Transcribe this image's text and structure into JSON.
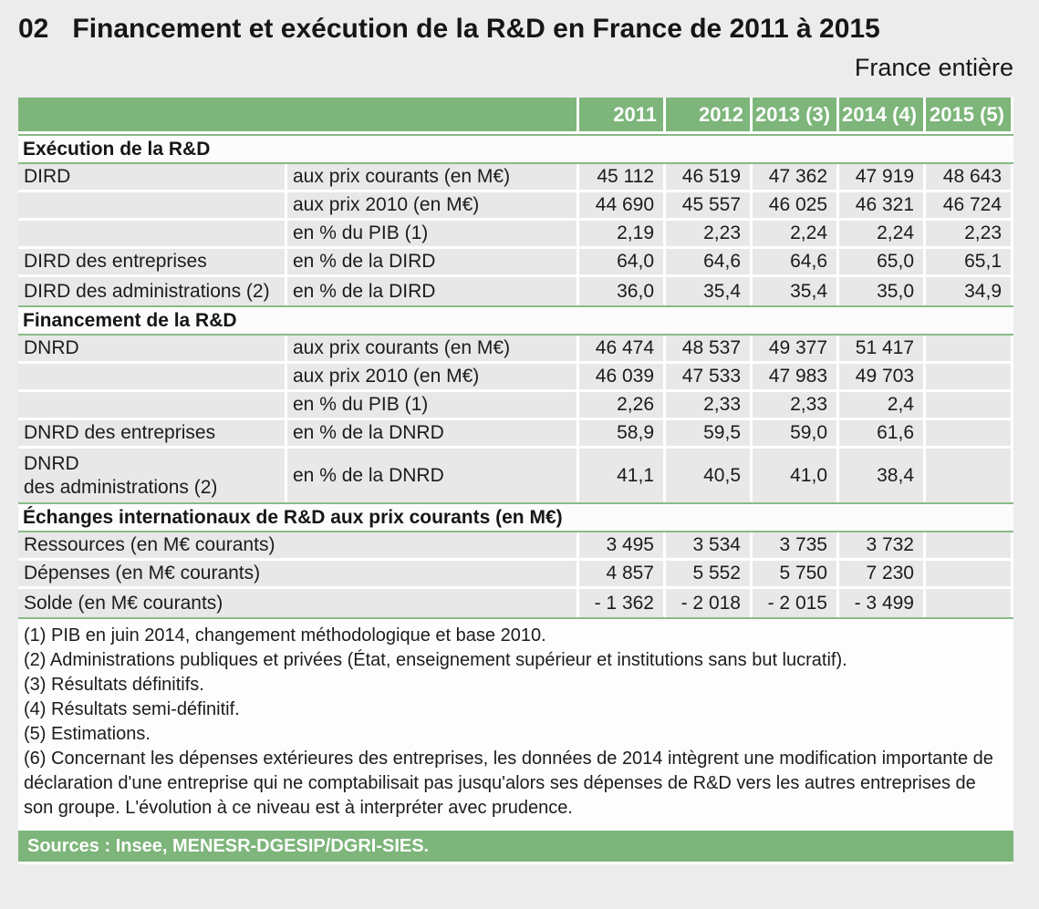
{
  "page": {
    "number": "02",
    "title": "Financement et exécution de la R&D en France de 2011 à 2015",
    "region_label": "France entière"
  },
  "colors": {
    "header_green": "#7db57a",
    "section_line_green": "#8aba86",
    "row_gray": "#e8e8e8",
    "page_background": "#ececec"
  },
  "table": {
    "year_headers": [
      "2011",
      "2012",
      "2013 (3)",
      "2014 (4)",
      "2015 (5)"
    ],
    "sections": [
      {
        "title": "Exécution de la R&D",
        "rows": [
          {
            "label": "DIRD",
            "sublabel": "aux prix courants (en M€)",
            "values": [
              "45 112",
              "46 519",
              "47 362",
              "47 919",
              "48 643"
            ]
          },
          {
            "label": "",
            "sublabel": "aux prix 2010 (en M€)",
            "values": [
              "44 690",
              "45 557",
              "46 025",
              "46 321",
              "46 724"
            ]
          },
          {
            "label": "",
            "sublabel": "en % du PIB (1)",
            "values": [
              "2,19",
              "2,23",
              "2,24",
              "2,24",
              "2,23"
            ]
          },
          {
            "label": "DIRD des entreprises",
            "sublabel": "en % de la DIRD",
            "values": [
              "64,0",
              "64,6",
              "64,6",
              "65,0",
              "65,1"
            ]
          },
          {
            "label": "DIRD des administrations (2)",
            "sublabel": "en % de la DIRD",
            "values": [
              "36,0",
              "35,4",
              "35,4",
              "35,0",
              "34,9"
            ]
          }
        ]
      },
      {
        "title": "Financement de la R&D",
        "rows": [
          {
            "label": "DNRD",
            "sublabel": "aux prix courants (en M€)",
            "values": [
              "46 474",
              "48 537",
              "49 377",
              "51 417",
              ""
            ]
          },
          {
            "label": "",
            "sublabel": "aux prix 2010 (en M€)",
            "values": [
              "46 039",
              "47 533",
              "47 983",
              "49 703",
              ""
            ]
          },
          {
            "label": "",
            "sublabel": "en % du PIB (1)",
            "values": [
              "2,26",
              "2,33",
              "2,33",
              "2,4",
              ""
            ]
          },
          {
            "label": "DNRD des entreprises",
            "sublabel": "en % de la DNRD",
            "values": [
              "58,9",
              "59,5",
              "59,0",
              "61,6",
              ""
            ]
          },
          {
            "label": "DNRD\ndes administrations (2)",
            "sublabel": "en % de la DNRD",
            "values": [
              "41,1",
              "40,5",
              "41,0",
              "38,4",
              ""
            ],
            "tall": true
          }
        ]
      },
      {
        "title": "Échanges internationaux de R&D aux prix courants (en M€)",
        "rows": [
          {
            "label": "Ressources (en M€ courants)",
            "sublabel": null,
            "values": [
              "3 495",
              "3 534",
              "3 735",
              "3 732",
              ""
            ]
          },
          {
            "label": "Dépenses (en M€ courants)",
            "sublabel": null,
            "values": [
              "4 857",
              "5 552",
              "5 750",
              "7 230",
              ""
            ]
          },
          {
            "label": "Solde (en M€ courants)",
            "sublabel": null,
            "values": [
              "- 1 362",
              "- 2 018",
              "- 2 015",
              "- 3 499",
              ""
            ]
          }
        ]
      }
    ]
  },
  "footnotes": [
    "(1) PIB en juin 2014, changement méthodologique et base 2010.",
    "(2) Administrations publiques et privées (État, enseignement supérieur et institutions sans but lucratif).",
    "(3) Résultats définitifs.",
    "(4) Résultats semi-définitif.",
    "(5) Estimations.",
    "(6) Concernant les dépenses extérieures des entreprises, les données de 2014 intègrent une modification importante de déclaration d'une entreprise qui ne comptabilisait pas jusqu'alors ses dépenses de R&D vers les autres entreprises de son groupe. L'évolution à ce niveau est à interpréter avec prudence."
  ],
  "sources": "Sources : Insee, MENESR-DGESIP/DGRI-SIES."
}
